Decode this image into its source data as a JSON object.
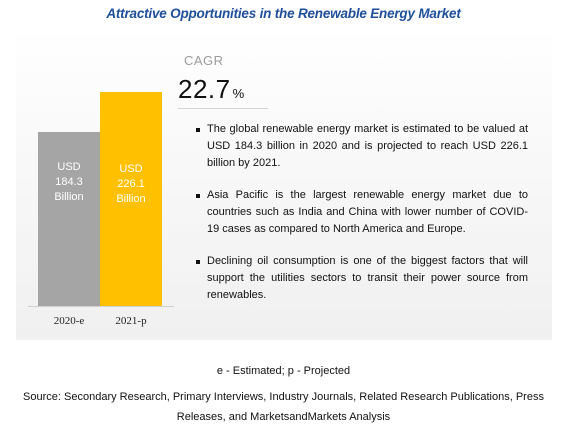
{
  "title": "Attractive Opportunities in the Renewable Energy Market",
  "cagr": {
    "label": "CAGR",
    "value": "22.7",
    "unit": "%"
  },
  "chart_data": {
    "type": "bar",
    "categories": [
      "2020-e",
      "2021-p"
    ],
    "values": [
      184.3,
      226.1
    ],
    "bar_labels": [
      [
        "USD",
        "184.3",
        "Billion"
      ],
      [
        "USD",
        "226.1",
        "Billion"
      ]
    ],
    "colors": [
      "#a5a5a5",
      "#ffc000"
    ],
    "ylim": [
      0,
      226.1
    ],
    "grid": false
  },
  "bullets": [
    "The global renewable energy market is estimated to be valued at USD 184.3 billion in 2020 and is projected to reach USD 226.1 billion by 2021.",
    "Asia Pacific is the largest renewable energy market due to countries such as India and China with lower number of COVID-19 cases as compared to North America and Europe.",
    "Declining oil consumption is one of the biggest factors that will support the utilities sectors to transit their power source from renewables."
  ],
  "footnote": "e - Estimated; p - Projected",
  "source": "Source: Secondary Research, Primary Interviews, Industry Journals, Related Research Publications, Press Releases, and MarketsandMarkets Analysis"
}
